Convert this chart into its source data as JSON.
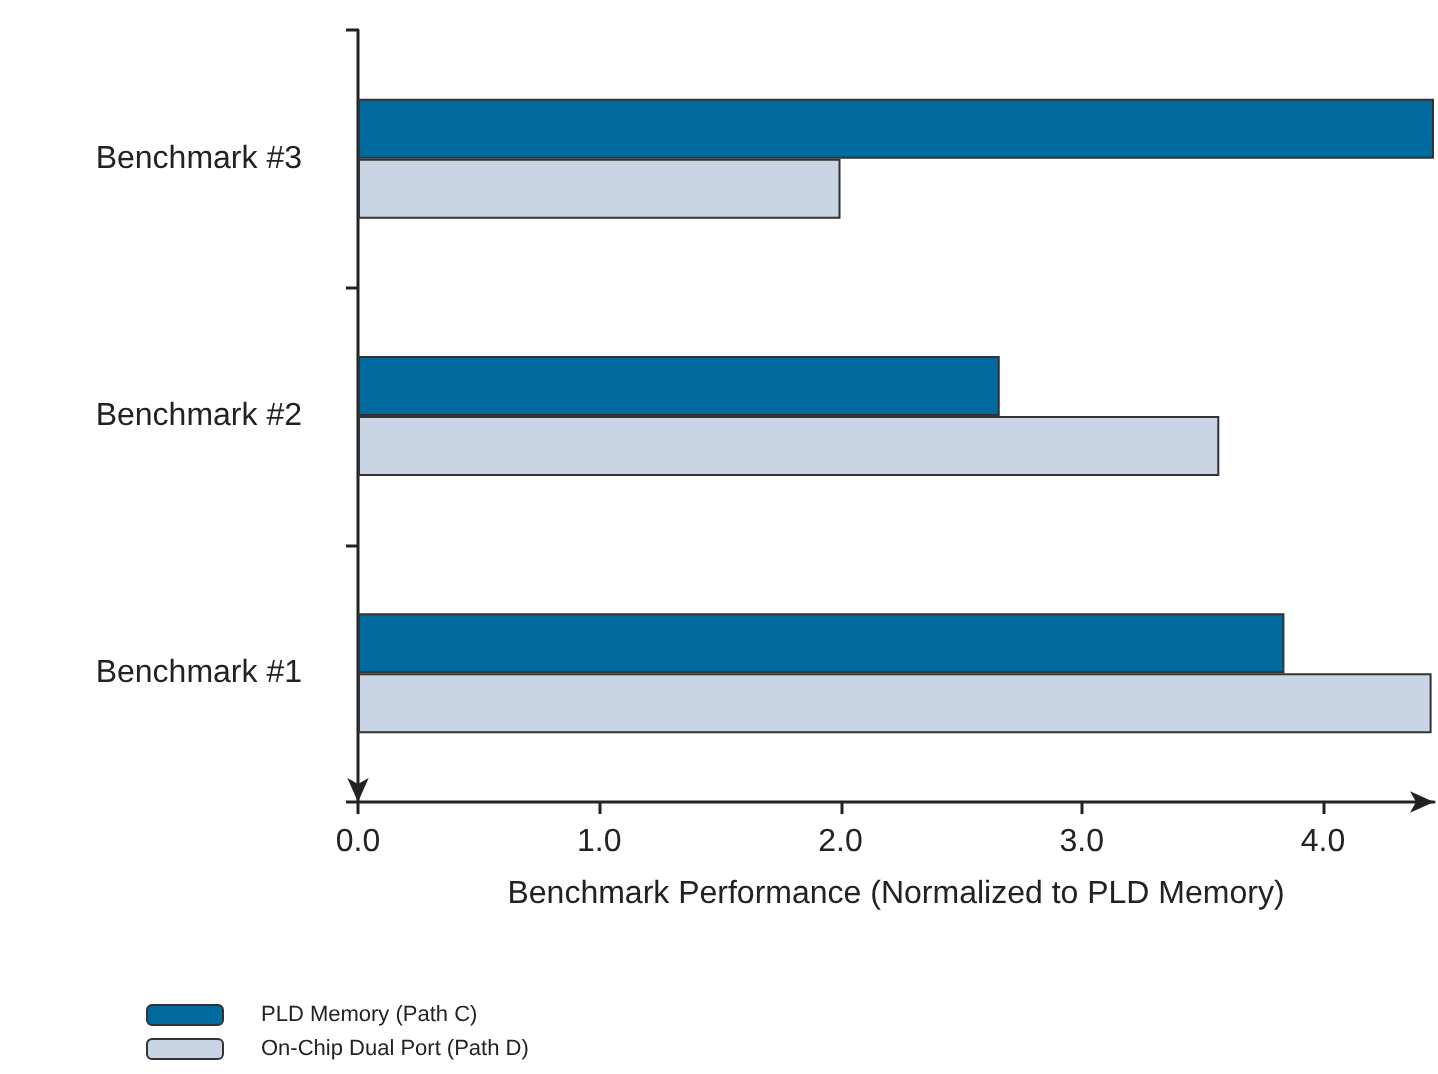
{
  "chart_data": {
    "type": "bar",
    "orientation": "horizontal",
    "xlabel": "Benchmark Performance (Normalized to PLD Memory)",
    "categories": [
      "Benchmark #3",
      "Benchmark #2",
      "Benchmark #1"
    ],
    "series": [
      {
        "name": "PLD Memory (Path C)",
        "color": "#00699e",
        "values": [
          4.46,
          2.66,
          3.84
        ]
      },
      {
        "name": "On-Chip Dual Port (Path D)",
        "color": "#c9d4e4",
        "values": [
          2.0,
          3.57,
          4.45
        ]
      }
    ],
    "xlim": [
      0,
      4.46
    ],
    "xticks": [
      {
        "value": 0,
        "label": "0.0"
      },
      {
        "value": 1,
        "label": "1.0"
      },
      {
        "value": 2,
        "label": "2.0"
      },
      {
        "value": 3,
        "label": "3.0"
      },
      {
        "value": 4,
        "label": "4.0"
      }
    ],
    "grid": false,
    "legend": "bottom left"
  }
}
